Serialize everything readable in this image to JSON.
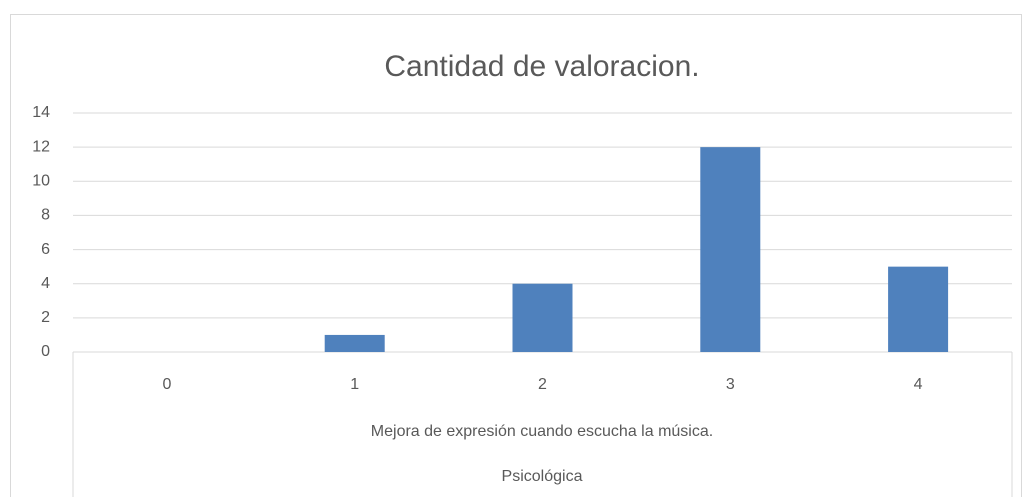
{
  "chart_data": {
    "type": "bar",
    "title": "Cantidad de valoracion.",
    "categories": [
      "0",
      "1",
      "2",
      "3",
      "4"
    ],
    "values": [
      0,
      1,
      4,
      12,
      5
    ],
    "color": "#4f81bd",
    "x_group_labels": [
      "Mejora de expresión cuando escucha la música.",
      "Psicológica"
    ],
    "ylim": [
      0,
      14
    ],
    "yticks": [
      0,
      2,
      4,
      6,
      8,
      10,
      12,
      14
    ],
    "grid": true
  }
}
